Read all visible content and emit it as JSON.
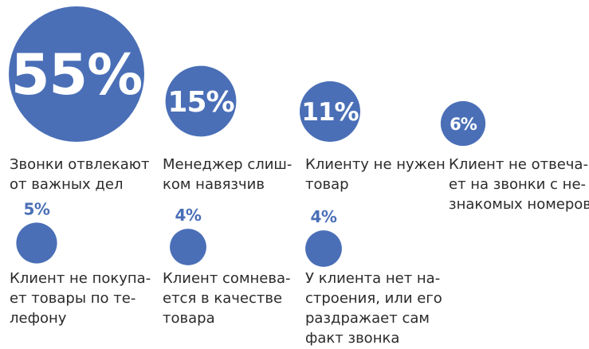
{
  "chart_data": {
    "type": "bubble",
    "unit": "%",
    "colors": {
      "bubble": "#4a6fb7",
      "label_on_bubble": "#ffffff",
      "label_above_bubble": "#4a6fb7",
      "caption": "#2b2b2b"
    },
    "items": [
      {
        "value": 55,
        "value_label": "55%",
        "caption_lines": [
          "Звонки отвлекают",
          "от важных дел"
        ]
      },
      {
        "value": 15,
        "value_label": "15%",
        "caption_lines": [
          "Менеджер слиш-",
          "ком навязчив"
        ]
      },
      {
        "value": 11,
        "value_label": "11%",
        "caption_lines": [
          "Клиенту не нужен",
          "товар"
        ]
      },
      {
        "value": 6,
        "value_label": "6%",
        "caption_lines": [
          "Клиент не отвеча-",
          "ет на звонки с не-",
          "знакомых номеров"
        ]
      },
      {
        "value": 5,
        "value_label": "5%",
        "caption_lines": [
          "Клиент не покупа-",
          "ет товары по те-",
          "лефону"
        ]
      },
      {
        "value": 4,
        "value_label": "4%",
        "caption_lines": [
          "Клиент сомнева-",
          "ется в качестве",
          "товара"
        ]
      },
      {
        "value": 4,
        "value_label": "4%",
        "caption_lines": [
          "У клиента нет на-",
          "строения, или его",
          "раздражает сам",
          "факт звонка"
        ]
      }
    ]
  }
}
